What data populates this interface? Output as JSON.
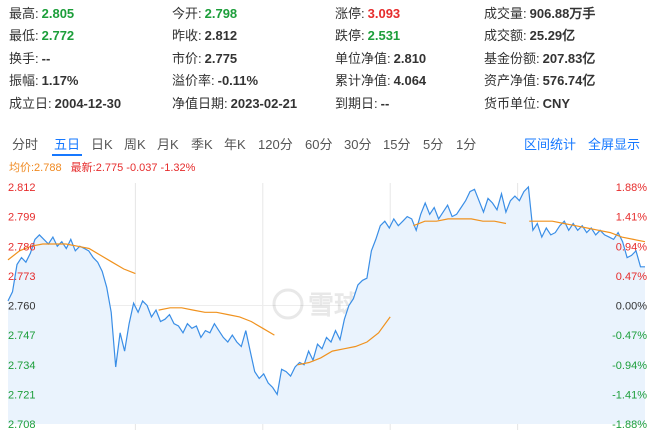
{
  "quote": [
    {
      "label": "最高:",
      "value": "2.805",
      "tone": "down"
    },
    {
      "label": "今开:",
      "value": "2.798",
      "tone": "down"
    },
    {
      "label": "涨停:",
      "value": "3.093",
      "tone": "up"
    },
    {
      "label": "成交量:",
      "value": "906.88万手",
      "tone": "plain"
    },
    {
      "label": "最低:",
      "value": "2.772",
      "tone": "down"
    },
    {
      "label": "昨收:",
      "value": "2.812",
      "tone": "plain"
    },
    {
      "label": "跌停:",
      "value": "2.531",
      "tone": "down"
    },
    {
      "label": "成交额:",
      "value": "25.29亿",
      "tone": "plain"
    },
    {
      "label": "换手:",
      "value": "--",
      "tone": "plain"
    },
    {
      "label": "市价:",
      "value": "2.775",
      "tone": "plain"
    },
    {
      "label": "单位净值:",
      "value": "2.810",
      "tone": "plain"
    },
    {
      "label": "基金份额:",
      "value": "207.83亿",
      "tone": "plain"
    },
    {
      "label": "振幅:",
      "value": "1.17%",
      "tone": "plain"
    },
    {
      "label": "溢价率:",
      "value": "-0.11%",
      "tone": "plain"
    },
    {
      "label": "累计净值:",
      "value": "4.064",
      "tone": "plain"
    },
    {
      "label": "资产净值:",
      "value": "576.74亿",
      "tone": "plain"
    },
    {
      "label": "成立日:",
      "value": "2004-12-30",
      "tone": "plain"
    },
    {
      "label": "净值日期:",
      "value": "2023-02-21",
      "tone": "plain"
    },
    {
      "label": "到期日:",
      "value": "--",
      "tone": "plain"
    },
    {
      "label": "货币单位:",
      "value": "CNY",
      "tone": "plain"
    }
  ],
  "tabs": [
    "分时",
    "五日",
    "日K",
    "周K",
    "月K",
    "季K",
    "年K",
    "120分",
    "60分",
    "30分",
    "15分",
    "5分",
    "1分"
  ],
  "active_tab": "五日",
  "actions": {
    "stats": "区间统计",
    "fullscreen": "全屏显示"
  },
  "legend": {
    "avg": "均价:2.788",
    "latest": "最新:2.775 -0.037 -1.32%"
  },
  "watermark": "雪球",
  "colors": {
    "price_line": "#3a8ee6",
    "avg_line": "#f0921e",
    "fill": "#eaf3fd",
    "up": "#e62c2c",
    "down": "#1c9e3a"
  },
  "chart_data": {
    "type": "line",
    "y_ticks_left": [
      "2.812",
      "2.799",
      "2.786",
      "2.773",
      "2.760",
      "2.747",
      "2.734",
      "2.721",
      "2.708"
    ],
    "y_ticks_right": [
      "1.88%",
      "1.41%",
      "0.94%",
      "0.47%",
      "0.00%",
      "-0.47%",
      "-0.94%",
      "-1.41%",
      "-1.88%"
    ],
    "ylim": [
      2.708,
      2.812
    ],
    "prev_close": 2.76,
    "days": 5,
    "series": [
      {
        "role": "price",
        "values": [
          2.762,
          2.766,
          2.778,
          2.781,
          2.779,
          2.783,
          2.789,
          2.791,
          2.789,
          2.787,
          2.79,
          2.786,
          2.788,
          2.785,
          2.789,
          2.784,
          2.786,
          2.785,
          2.784,
          2.781,
          2.779,
          2.775,
          2.768,
          2.757,
          2.733,
          2.748,
          2.74,
          2.752,
          2.761,
          2.757,
          2.762,
          2.76,
          2.755,
          2.758,
          2.753,
          2.754,
          2.756,
          2.752,
          2.751,
          2.748,
          2.752,
          2.75,
          2.751,
          2.746,
          2.749,
          2.748,
          2.752,
          2.749,
          2.746,
          2.744,
          2.747,
          2.744,
          2.742,
          2.749,
          2.74,
          2.731,
          2.728,
          2.73,
          2.726,
          2.724,
          2.721,
          2.732,
          2.731,
          2.729,
          2.733,
          2.735,
          2.734,
          2.74,
          2.736,
          2.743,
          2.741,
          2.746,
          2.744,
          2.749,
          2.745,
          2.754,
          2.76,
          2.763,
          2.769,
          2.771,
          2.772,
          2.784,
          2.789,
          2.795,
          2.797,
          2.794,
          2.798,
          2.795,
          2.797,
          2.799,
          2.798,
          2.793,
          2.8,
          2.805,
          2.8,
          2.803,
          2.798,
          2.801,
          2.804,
          2.799,
          2.8,
          2.803,
          2.806,
          2.81,
          2.811,
          2.806,
          2.801,
          2.807,
          2.805,
          2.802,
          2.809,
          2.801,
          2.806,
          2.808,
          2.806,
          2.81,
          2.812,
          2.793,
          2.796,
          2.79,
          2.794,
          2.791,
          2.792,
          2.795,
          2.797,
          2.793,
          2.796,
          2.793,
          2.795,
          2.792,
          2.794,
          2.791,
          2.793,
          2.791,
          2.79,
          2.789,
          2.792,
          2.788,
          2.781,
          2.782,
          2.784,
          2.777,
          2.777
        ]
      },
      {
        "role": "average",
        "values": [
          2.78,
          2.784,
          2.786,
          2.787,
          2.787,
          2.787,
          2.786,
          2.785,
          2.782,
          2.779,
          2.776,
          2.774,
          null,
          2.758,
          2.759,
          2.759,
          2.758,
          2.757,
          2.757,
          2.756,
          2.755,
          2.753,
          2.75,
          2.747,
          null,
          2.734,
          2.735,
          2.737,
          2.74,
          2.741,
          2.742,
          2.744,
          2.748,
          2.755,
          null,
          2.795,
          2.797,
          2.797,
          2.798,
          2.798,
          2.798,
          2.797,
          2.797,
          2.796,
          null,
          2.797,
          2.797,
          2.797,
          2.796,
          2.795,
          2.794,
          2.793,
          2.792,
          2.79,
          2.789,
          2.788
        ]
      }
    ]
  }
}
